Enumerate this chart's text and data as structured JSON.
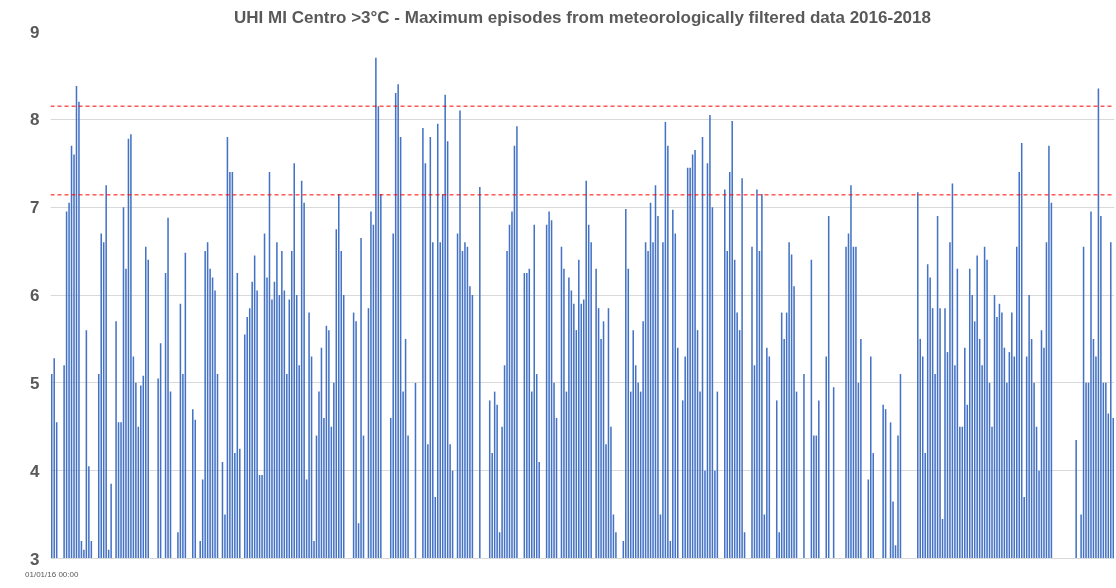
{
  "chart_data": {
    "type": "bar",
    "title": "UHI MI Centro >3°C - Maximum episodes from meteorologically filtered data 2016-2018",
    "categories": [
      "01/01/16 00:00",
      null,
      null,
      null,
      null,
      null,
      null,
      null,
      null,
      null,
      null,
      null,
      null,
      null,
      null,
      null,
      null,
      null,
      null,
      null,
      null,
      null,
      null,
      null,
      null,
      null,
      null,
      null,
      null,
      null,
      null,
      null,
      null,
      null,
      null,
      null,
      null,
      null,
      null,
      null,
      null,
      null,
      null,
      null,
      null,
      null,
      null,
      null,
      null,
      null,
      null,
      null,
      null,
      null,
      null,
      null,
      null,
      null,
      null,
      null,
      null,
      null,
      null,
      null,
      null,
      null,
      null,
      null,
      null,
      null,
      null,
      null,
      null,
      null,
      null,
      null,
      null,
      null,
      null,
      null,
      null,
      null,
      null,
      null,
      null,
      null,
      null,
      null,
      null,
      null,
      null,
      null,
      null,
      null,
      null,
      null,
      null,
      null,
      null,
      null,
      null,
      null,
      null,
      null,
      null,
      null,
      null,
      null,
      null,
      null,
      null,
      null,
      null,
      null,
      null,
      null,
      null,
      null,
      null,
      null,
      null,
      null,
      null,
      null,
      null,
      null,
      null,
      null,
      null,
      null,
      null,
      null,
      null,
      null,
      null,
      null,
      null,
      null,
      null,
      null,
      null,
      null,
      null,
      null,
      null,
      null,
      null,
      null,
      null,
      null,
      null,
      null,
      null,
      null,
      null,
      null,
      null,
      null,
      null,
      null,
      null,
      null,
      null,
      null,
      null,
      null,
      null,
      null,
      null,
      null,
      null,
      null,
      null,
      null,
      null,
      null,
      null,
      null,
      null,
      null,
      null,
      null,
      null,
      null,
      null,
      null,
      null,
      null,
      null,
      null,
      null,
      null,
      null,
      null,
      null,
      null,
      null,
      null,
      null,
      null,
      null,
      null,
      null,
      null,
      null,
      null,
      null,
      null,
      null,
      null,
      null,
      null,
      null,
      null,
      null,
      null,
      null,
      null,
      null,
      null,
      null,
      null,
      null,
      null,
      null,
      null,
      null,
      null,
      null,
      null,
      null,
      null,
      null,
      null,
      null,
      null,
      null,
      null,
      null,
      null,
      null,
      null,
      null,
      null,
      null,
      null,
      null,
      null,
      null,
      null,
      null,
      null,
      null,
      null,
      null,
      null,
      null,
      null,
      null,
      null,
      null,
      null,
      null,
      null,
      null,
      null,
      null,
      null,
      null,
      null,
      null,
      null,
      null,
      null,
      null,
      null,
      null,
      null,
      null,
      null,
      null,
      null,
      null,
      null,
      null,
      null,
      null,
      null,
      null,
      null,
      null,
      null,
      null,
      null,
      null,
      null,
      null,
      null,
      null,
      null,
      null,
      null,
      null,
      null,
      null,
      null,
      null,
      null,
      null,
      null,
      null,
      null,
      null,
      null,
      null,
      null,
      null,
      null,
      null,
      null,
      null,
      null,
      null,
      null,
      null,
      null,
      null,
      null,
      null,
      null,
      null,
      null,
      null,
      null,
      null,
      null,
      null,
      null,
      null,
      null,
      null,
      null,
      null,
      null,
      null,
      null,
      null,
      null,
      null,
      null,
      null,
      null,
      null,
      null,
      null,
      null,
      null,
      null,
      null,
      null,
      null,
      null,
      null,
      null,
      null,
      null,
      null,
      null,
      null,
      null,
      null,
      null,
      null,
      null,
      null,
      null,
      null,
      null,
      null,
      null,
      null,
      null,
      null,
      null,
      null,
      null,
      null,
      null,
      null,
      null,
      null,
      null,
      null,
      null,
      null,
      null,
      null,
      null,
      null,
      null,
      null,
      null,
      null,
      null,
      null,
      null,
      null,
      null,
      null,
      null,
      null,
      null,
      null,
      null,
      null,
      null,
      null,
      null,
      null,
      null,
      null,
      null,
      null,
      null,
      null,
      null,
      null,
      null,
      null,
      null
    ],
    "color": "#4472c4",
    "values": [
      5.1,
      5.28,
      4.55,
      null,
      null,
      5.2,
      6.95,
      7.05,
      7.7,
      7.6,
      8.38,
      8.2,
      3.2,
      3.1,
      5.6,
      4.05,
      3.2,
      null,
      null,
      5.1,
      6.7,
      6.6,
      7.25,
      3.1,
      3.85,
      null,
      5.7,
      4.55,
      4.55,
      7.0,
      6.3,
      7.78,
      7.83,
      5.3,
      5.0,
      4.5,
      4.97,
      5.08,
      6.55,
      6.4,
      null,
      null,
      null,
      5.05,
      5.45,
      null,
      6.25,
      6.88,
      4.9,
      null,
      null,
      3.3,
      5.9,
      5.1,
      6.48,
      null,
      null,
      4.7,
      4.58,
      null,
      3.2,
      3.9,
      6.5,
      6.6,
      6.3,
      6.2,
      6.05,
      5.1,
      null,
      4.1,
      3.5,
      7.8,
      7.4,
      7.4,
      4.2,
      6.25,
      4.25,
      null,
      5.55,
      5.75,
      5.85,
      6.15,
      6.45,
      6.05,
      3.95,
      3.95,
      6.7,
      6.2,
      7.4,
      5.95,
      6.15,
      6.6,
      6.0,
      6.5,
      6.05,
      5.1,
      5.95,
      6.5,
      7.5,
      6.0,
      5.2,
      7.3,
      7.05,
      3.9,
      5.8,
      5.3,
      3.2,
      4.4,
      4.9,
      5.4,
      4.6,
      5.65,
      5.6,
      4.5,
      5.0,
      6.75,
      7.15,
      6.5,
      6.0,
      null,
      null,
      null,
      5.8,
      5.7,
      3.4,
      6.65,
      4.4,
      null,
      5.85,
      6.95,
      6.8,
      8.7,
      8.15,
      7.15,
      null,
      null,
      null,
      4.6,
      6.7,
      8.3,
      8.4,
      7.8,
      4.9,
      5.5,
      4.4,
      null,
      null,
      5.0,
      null,
      null,
      7.9,
      7.5,
      4.3,
      7.8,
      6.6,
      3.7,
      7.95,
      6.6,
      7.15,
      8.28,
      7.75,
      4.3,
      4.0,
      null,
      6.7,
      8.1,
      6.5,
      6.6,
      6.55,
      6.1,
      6.0,
      null,
      null,
      7.23,
      null,
      null,
      null,
      4.8,
      4.2,
      4.9,
      4.75,
      3.3,
      4.5,
      5.2,
      6.5,
      6.8,
      6.95,
      7.7,
      7.92,
      null,
      null,
      6.25,
      6.25,
      6.3,
      4.9,
      6.8,
      5.1,
      4.1,
      null,
      null,
      6.8,
      6.95,
      6.85,
      5.0,
      4.6,
      null,
      6.55,
      6.3,
      4.9,
      6.2,
      6.05,
      5.9,
      5.6,
      6.4,
      5.9,
      5.95,
      7.3,
      6.8,
      6.6,
      null,
      6.3,
      5.85,
      5.5,
      5.7,
      4.3,
      5.85,
      4.5,
      3.5,
      3.3,
      null,
      null,
      3.2,
      6.98,
      6.3,
      4.9,
      5.6,
      5.2,
      5.0,
      4.9,
      5.7,
      6.6,
      6.5,
      7.05,
      6.6,
      7.25,
      6.9,
      3.5,
      6.6,
      7.97,
      7.7,
      3.2,
      6.97,
      6.7,
      5.4,
      null,
      4.8,
      5.3,
      7.45,
      7.45,
      7.6,
      7.65,
      5.6,
      4.9,
      7.8,
      4.0,
      7.5,
      8.05,
      7.0,
      4.0,
      4.9,
      null,
      null,
      7.2,
      6.5,
      7.4,
      7.98,
      6.4,
      5.8,
      5.6,
      7.33,
      3.3,
      null,
      null,
      6.55,
      5.2,
      7.2,
      6.5,
      7.15,
      3.5,
      5.4,
      5.3,
      null,
      null,
      4.8,
      3.3,
      5.8,
      5.5,
      5.8,
      6.6,
      6.46,
      6.1,
      4.9,
      null,
      null,
      5.1,
      null,
      null,
      6.4,
      4.4,
      4.4,
      4.8,
      null,
      null,
      5.3,
      6.9,
      null,
      4.95,
      null,
      null,
      null,
      null,
      6.55,
      6.7,
      7.25,
      6.55,
      6.55,
      5.0,
      5.5,
      null,
      null,
      3.9,
      5.3,
      4.2,
      null,
      null,
      null,
      4.75,
      4.7,
      null,
      4.55,
      3.65,
      3.15,
      4.4,
      5.1,
      null,
      null,
      null,
      null,
      null,
      null,
      7.17,
      5.5,
      5.3,
      4.2,
      6.35,
      6.2,
      5.85,
      5.1,
      6.9,
      5.85,
      3.45,
      5.85,
      5.35,
      6.6,
      7.27,
      5.2,
      6.3,
      4.5,
      4.5,
      5.4,
      4.75,
      6.3,
      6.0,
      5.7,
      6.45,
      5.5,
      5.2,
      6.55,
      6.4,
      5.0,
      4.5,
      6.0,
      5.75,
      5.9,
      5.8,
      5.4,
      5.0,
      5.35,
      5.8,
      5.3,
      6.55,
      7.4,
      7.73,
      3.7,
      5.3,
      6.0,
      5.5,
      5.0,
      4.5,
      4.0,
      5.6,
      5.4,
      6.6,
      7.7,
      7.05,
      null,
      null,
      null,
      null,
      null,
      null,
      null,
      null,
      null,
      4.35,
      null,
      3.5,
      6.55,
      5.0,
      5.0,
      6.95,
      5.5,
      5.3,
      8.35,
      6.9,
      5.0,
      5.0,
      4.65,
      6.6,
      4.6
    ],
    "ylim": [
      3,
      9
    ],
    "yticks": [
      3,
      4,
      5,
      6,
      7,
      8,
      9
    ],
    "grid": "y",
    "ref_lines": [
      {
        "axis": "y",
        "value": 8.15,
        "color": "#ff0000",
        "line_style": "dashed"
      },
      {
        "axis": "y",
        "value": 7.14,
        "color": "#ff0000",
        "line_style": "dashed"
      }
    ]
  }
}
